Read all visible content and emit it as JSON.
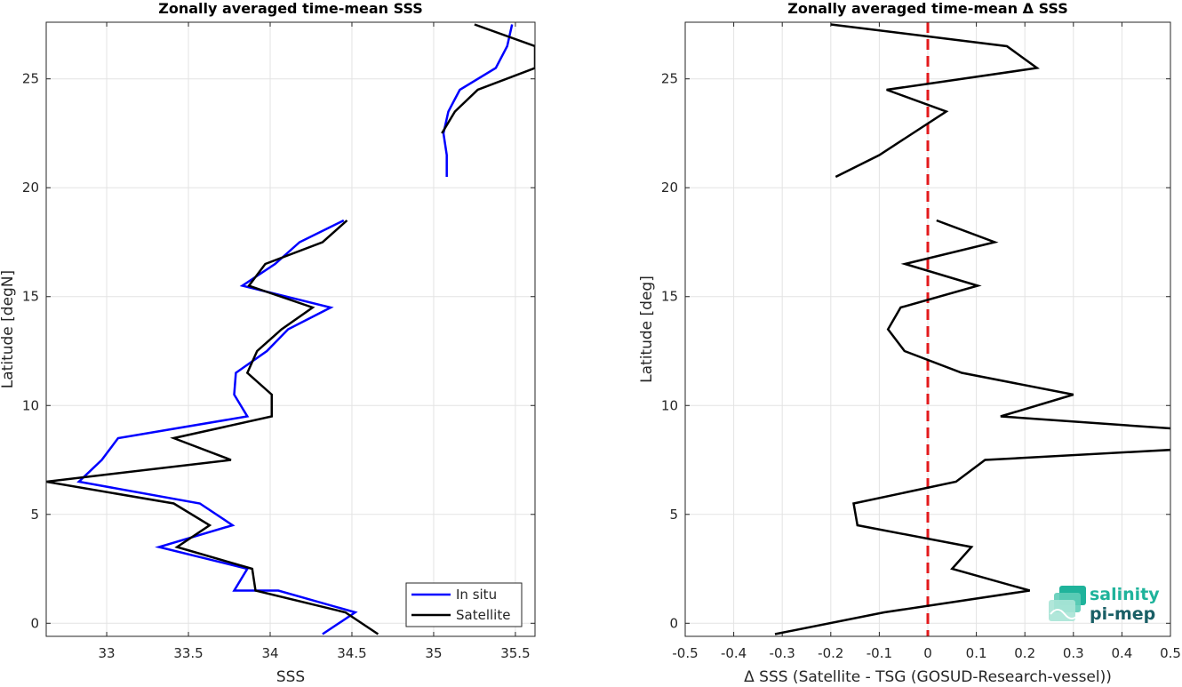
{
  "chart_data": [
    {
      "type": "line",
      "title": "Zonally averaged time-mean SSS",
      "xlabel": "SSS",
      "ylabel": "Latitude [degN]",
      "xlim": [
        32.63,
        35.62
      ],
      "ylim": [
        -0.6,
        27.6
      ],
      "xticks": [
        "33",
        "33.5",
        "34",
        "34.5",
        "35",
        "35.5"
      ],
      "yticks": [
        "0",
        "5",
        "10",
        "15",
        "20",
        "25"
      ],
      "grid": true,
      "legend": "bottom-right",
      "series": [
        {
          "name": "In situ",
          "color": "#0000ff",
          "segments": [
            [
              [
                34.32,
                -0.5
              ],
              [
                34.52,
                0.5
              ],
              [
                34.05,
                1.5
              ],
              [
                33.78,
                1.5
              ],
              [
                33.86,
                2.5
              ],
              [
                33.32,
                3.5
              ],
              [
                33.77,
                4.5
              ],
              [
                33.57,
                5.5
              ],
              [
                32.83,
                6.5
              ],
              [
                32.97,
                7.5
              ],
              [
                33.07,
                8.5
              ],
              [
                33.86,
                9.5
              ],
              [
                33.78,
                10.5
              ],
              [
                33.79,
                11.5
              ],
              [
                33.98,
                12.5
              ],
              [
                34.11,
                13.5
              ],
              [
                34.37,
                14.5
              ],
              [
                33.83,
                15.5
              ],
              [
                34.03,
                16.5
              ],
              [
                34.18,
                17.5
              ],
              [
                34.45,
                18.5
              ]
            ],
            [
              [
                35.08,
                20.5
              ],
              [
                35.08,
                21.5
              ],
              [
                35.06,
                22.5
              ],
              [
                35.09,
                23.5
              ],
              [
                35.16,
                24.5
              ],
              [
                35.38,
                25.5
              ],
              [
                35.45,
                26.5
              ],
              [
                35.48,
                27.5
              ]
            ]
          ]
        },
        {
          "name": "Satellite",
          "color": "#000000",
          "segments": [
            [
              [
                34.66,
                -0.5
              ],
              [
                34.46,
                0.5
              ],
              [
                33.91,
                1.5
              ],
              [
                33.89,
                2.5
              ],
              [
                33.43,
                3.5
              ],
              [
                33.63,
                4.5
              ],
              [
                33.41,
                5.5
              ],
              [
                32.63,
                6.5
              ],
              [
                33.76,
                7.5
              ],
              [
                33.41,
                8.5
              ],
              [
                34.01,
                9.5
              ],
              [
                34.01,
                10.5
              ],
              [
                33.86,
                11.5
              ],
              [
                33.92,
                12.5
              ],
              [
                34.07,
                13.5
              ],
              [
                34.26,
                14.5
              ],
              [
                33.87,
                15.5
              ],
              [
                33.97,
                16.5
              ],
              [
                34.32,
                17.5
              ],
              [
                34.47,
                18.5
              ]
            ],
            [
              [
                35.05,
                22.5
              ],
              [
                35.13,
                23.5
              ],
              [
                35.27,
                24.5
              ],
              [
                35.62,
                25.5
              ],
              [
                35.62,
                26.5
              ],
              [
                35.25,
                27.5
              ]
            ]
          ]
        }
      ]
    },
    {
      "type": "line",
      "title": "Zonally averaged time-mean Δ SSS",
      "xlabel": "Δ SSS (Satellite - TSG (GOSUD-Research-vessel))",
      "ylabel": "Latitude [deg]",
      "xlim": [
        -0.5,
        0.5
      ],
      "ylim": [
        -0.6,
        27.6
      ],
      "xticks": [
        "-0.5",
        "-0.4",
        "-0.3",
        "-0.2",
        "-0.1",
        "0",
        "0.1",
        "0.2",
        "0.3",
        "0.4",
        "0.5"
      ],
      "yticks": [
        "0",
        "5",
        "10",
        "15",
        "20",
        "25"
      ],
      "grid": true,
      "reference_line": {
        "x": 0,
        "color": "#e31a1c",
        "style": "dashed"
      },
      "series": [
        {
          "name": "",
          "color": "#000000",
          "segments": [
            [
              [
                -0.315,
                -0.5
              ],
              [
                -0.09,
                0.5
              ],
              [
                0.21,
                1.5
              ],
              [
                0.05,
                2.5
              ],
              [
                0.09,
                3.5
              ],
              [
                -0.145,
                4.5
              ],
              [
                -0.153,
                5.5
              ],
              [
                0.058,
                6.5
              ],
              [
                0.118,
                7.5
              ],
              [
                0.53,
                8.0
              ],
              [
                0.53,
                8.9
              ],
              [
                0.15,
                9.5
              ],
              [
                0.3,
                10.5
              ],
              [
                0.07,
                11.5
              ],
              [
                -0.048,
                12.5
              ],
              [
                -0.082,
                13.5
              ],
              [
                -0.056,
                14.5
              ],
              [
                0.103,
                15.5
              ],
              [
                -0.047,
                16.5
              ],
              [
                0.138,
                17.5
              ],
              [
                0.018,
                18.5
              ]
            ],
            [
              [
                -0.19,
                20.5
              ],
              [
                -0.1,
                21.5
              ],
              [
                0.038,
                23.5
              ],
              [
                -0.085,
                24.5
              ],
              [
                0.225,
                25.5
              ],
              [
                0.163,
                26.5
              ],
              [
                -0.2,
                27.5
              ]
            ]
          ]
        }
      ]
    }
  ],
  "logo": {
    "line1": "salinity",
    "line2": "pi-mep",
    "color1": "#1fb39b",
    "color2": "#1a5f66"
  }
}
